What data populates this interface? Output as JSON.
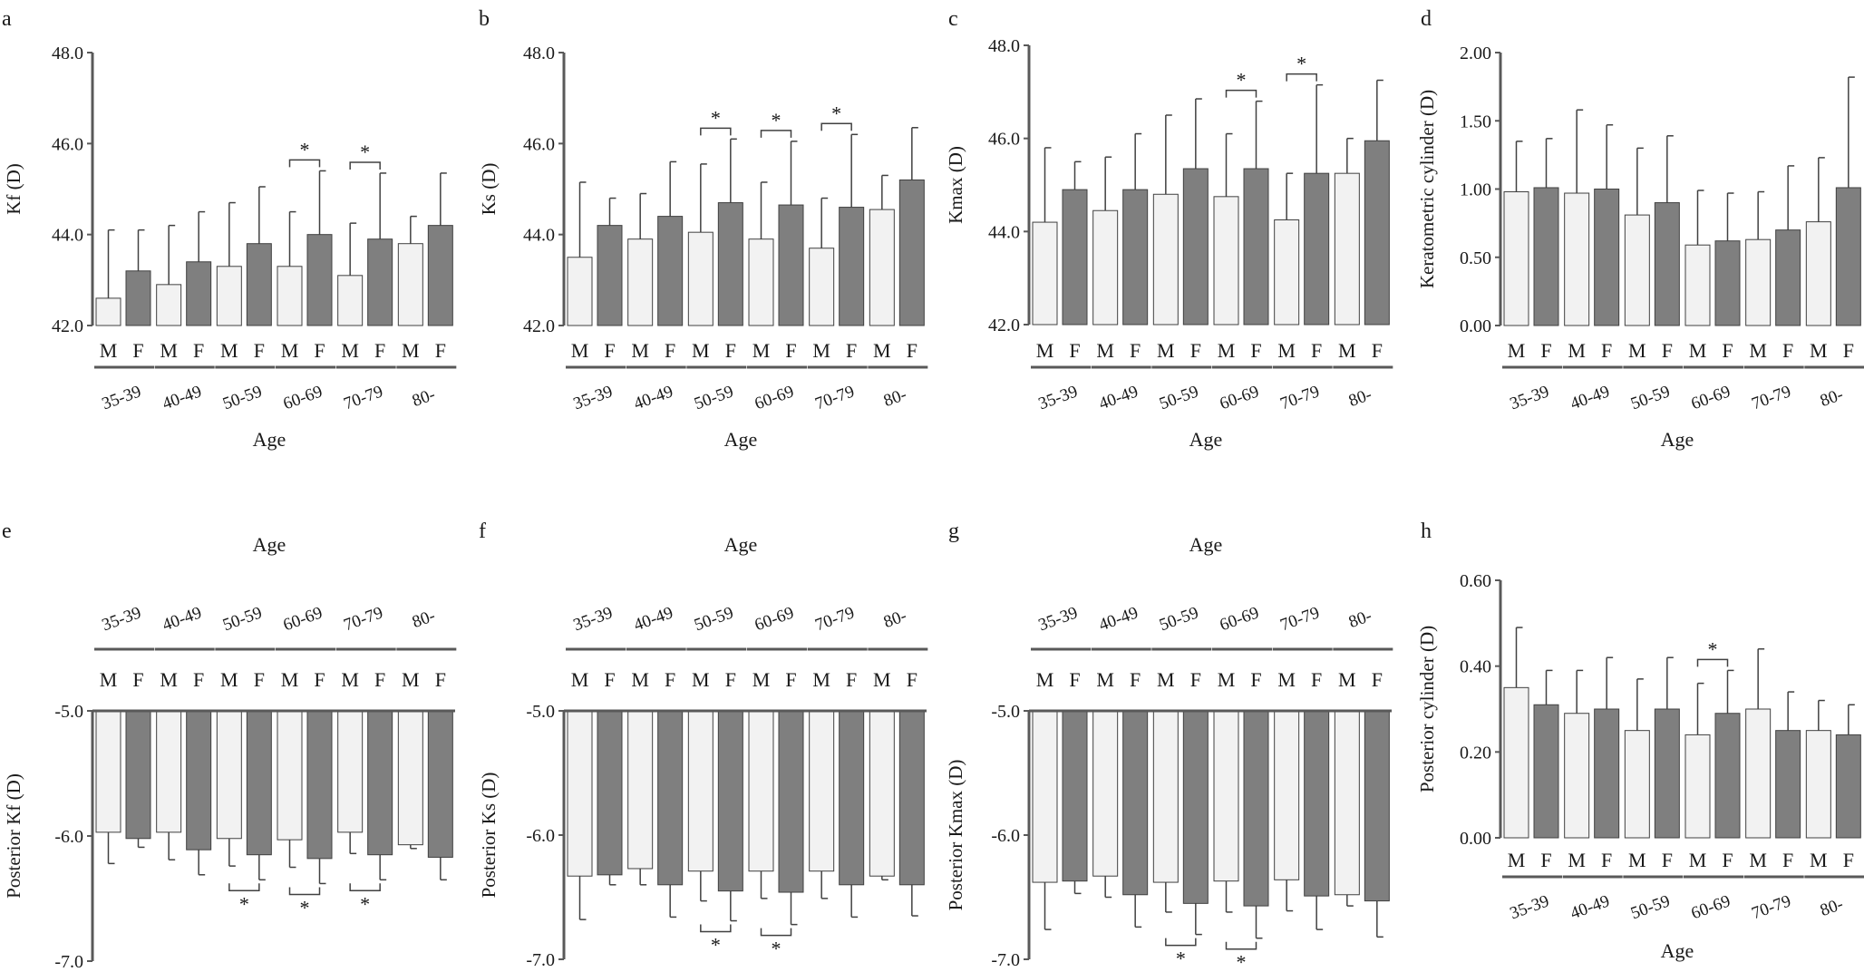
{
  "figure": {
    "colors": {
      "male": "#f2f2f2",
      "female": "#7f7f7f",
      "axis": "#595959",
      "edge": "#404040",
      "text": "#1a1a1a",
      "tick": "#666666"
    }
  },
  "chart_data": [
    {
      "panel": "a",
      "type": "bar",
      "orientation": "up",
      "ylabel": "Kf (D)",
      "xlabel": "Age",
      "ylim": [
        42.0,
        48.0
      ],
      "yticks": [
        "42.0",
        "44.0",
        "46.0",
        "48.0"
      ],
      "groups": [
        "35-39",
        "40-49",
        "50-59",
        "60-69",
        "70-79",
        "80-"
      ],
      "sex_labels": [
        "M",
        "F"
      ],
      "series": [
        {
          "name": "M",
          "values": [
            42.6,
            42.9,
            43.3,
            43.3,
            43.1,
            43.8
          ],
          "err": [
            1.5,
            1.3,
            1.4,
            1.2,
            1.15,
            0.6
          ]
        },
        {
          "name": "F",
          "values": [
            43.2,
            43.4,
            43.8,
            44.0,
            43.9,
            44.2
          ],
          "err": [
            0.9,
            1.1,
            1.25,
            1.4,
            1.45,
            1.15
          ]
        }
      ],
      "significant_groups": [
        3,
        4
      ],
      "sig_label": "*"
    },
    {
      "panel": "b",
      "type": "bar",
      "orientation": "up",
      "ylabel": "Ks (D)",
      "xlabel": "Age",
      "ylim": [
        42.0,
        48.0
      ],
      "yticks": [
        "42.0",
        "44.0",
        "46.0",
        "48.0"
      ],
      "groups": [
        "35-39",
        "40-49",
        "50-59",
        "60-69",
        "70-79",
        "80-"
      ],
      "sex_labels": [
        "M",
        "F"
      ],
      "series": [
        {
          "name": "M",
          "values": [
            43.5,
            43.9,
            44.05,
            43.9,
            43.7,
            44.55
          ],
          "err": [
            1.65,
            1.0,
            1.5,
            1.25,
            1.1,
            0.75
          ]
        },
        {
          "name": "F",
          "values": [
            44.2,
            44.4,
            44.7,
            44.65,
            44.6,
            45.2
          ],
          "err": [
            0.6,
            1.2,
            1.4,
            1.4,
            1.6,
            1.15
          ]
        }
      ],
      "significant_groups": [
        2,
        3,
        4
      ],
      "sig_label": "*"
    },
    {
      "panel": "c",
      "type": "bar",
      "orientation": "up",
      "ylabel": "Kmax (D)",
      "xlabel": "Age",
      "ylim": [
        42.0,
        48.0
      ],
      "yticks": [
        "42.0",
        "44.0",
        "46.0",
        "48.0"
      ],
      "groups": [
        "35-39",
        "40-49",
        "50-59",
        "60-69",
        "70-79",
        "80-"
      ],
      "sex_labels": [
        "M",
        "F"
      ],
      "series": [
        {
          "name": "M",
          "values": [
            44.2,
            44.45,
            44.8,
            44.75,
            44.25,
            45.25
          ],
          "err": [
            1.6,
            1.15,
            1.7,
            1.35,
            1.0,
            0.75
          ]
        },
        {
          "name": "F",
          "values": [
            44.9,
            44.9,
            45.35,
            45.35,
            45.25,
            45.95
          ],
          "err": [
            0.6,
            1.2,
            1.5,
            1.45,
            1.9,
            1.3
          ]
        }
      ],
      "significant_groups": [
        3,
        4
      ],
      "sig_label": "*"
    },
    {
      "panel": "d",
      "type": "bar",
      "orientation": "up",
      "ylabel": "Keratometric cylinder (D)",
      "xlabel": "Age",
      "ylim": [
        0.0,
        2.0
      ],
      "yticks": [
        "0.00",
        "0.50",
        "1.00",
        "1.50",
        "2.00"
      ],
      "groups": [
        "35-39",
        "40-49",
        "50-59",
        "60-69",
        "70-79",
        "80-"
      ],
      "sex_labels": [
        "M",
        "F"
      ],
      "series": [
        {
          "name": "M",
          "values": [
            0.98,
            0.97,
            0.81,
            0.59,
            0.63,
            0.76
          ],
          "err": [
            0.37,
            0.61,
            0.49,
            0.4,
            0.35,
            0.47
          ]
        },
        {
          "name": "F",
          "values": [
            1.01,
            1.0,
            0.9,
            0.62,
            0.7,
            1.01
          ],
          "err": [
            0.36,
            0.47,
            0.49,
            0.35,
            0.47,
            0.81
          ]
        }
      ],
      "significant_groups": [],
      "sig_label": "*"
    },
    {
      "panel": "e",
      "type": "bar",
      "orientation": "down",
      "ylabel": "Posterior Kf (D)",
      "xlabel": "Age",
      "ylim": [
        -7.0,
        -5.0
      ],
      "yticks": [
        "-5.0",
        "-6.0",
        "-7.0"
      ],
      "groups": [
        "35-39",
        "40-49",
        "50-59",
        "60-69",
        "70-79",
        "80-"
      ],
      "sex_labels": [
        "M",
        "F"
      ],
      "series": [
        {
          "name": "M",
          "values": [
            -5.97,
            -5.97,
            -6.02,
            -6.03,
            -5.97,
            -6.07
          ],
          "err": [
            0.25,
            0.22,
            0.22,
            0.22,
            0.17,
            0.03
          ]
        },
        {
          "name": "F",
          "values": [
            -6.02,
            -6.11,
            -6.15,
            -6.18,
            -6.15,
            -6.17
          ],
          "err": [
            0.07,
            0.2,
            0.2,
            0.2,
            0.2,
            0.18
          ]
        }
      ],
      "significant_groups": [
        2,
        3,
        4
      ],
      "sig_label": "*"
    },
    {
      "panel": "f",
      "type": "bar",
      "orientation": "down",
      "ylabel": "Posterior Ks (D)",
      "xlabel": "Age",
      "ylim": [
        -7.0,
        -5.0
      ],
      "yticks": [
        "-5.0",
        "-6.0",
        "-7.0"
      ],
      "groups": [
        "35-39",
        "40-49",
        "50-59",
        "60-69",
        "70-79",
        "80-"
      ],
      "sex_labels": [
        "M",
        "F"
      ],
      "series": [
        {
          "name": "M",
          "values": [
            -6.33,
            -6.27,
            -6.29,
            -6.29,
            -6.29,
            -6.33
          ],
          "err": [
            0.35,
            0.13,
            0.24,
            0.22,
            0.22,
            0.03
          ]
        },
        {
          "name": "F",
          "values": [
            -6.32,
            -6.4,
            -6.45,
            -6.46,
            -6.4,
            -6.4
          ],
          "err": [
            0.08,
            0.26,
            0.24,
            0.26,
            0.26,
            0.25
          ]
        }
      ],
      "significant_groups": [
        2,
        3
      ],
      "sig_label": "*"
    },
    {
      "panel": "g",
      "type": "bar",
      "orientation": "down",
      "ylabel": "Posterior Kmax (D)",
      "xlabel": "Age",
      "ylim": [
        -7.0,
        -5.0
      ],
      "yticks": [
        "-5.0",
        "-6.0",
        "-7.0"
      ],
      "groups": [
        "35-39",
        "40-49",
        "50-59",
        "60-69",
        "70-79",
        "80-"
      ],
      "sex_labels": [
        "M",
        "F"
      ],
      "series": [
        {
          "name": "M",
          "values": [
            -6.38,
            -6.33,
            -6.38,
            -6.37,
            -6.36,
            -6.48
          ],
          "err": [
            0.38,
            0.17,
            0.24,
            0.25,
            0.25,
            0.09
          ]
        },
        {
          "name": "F",
          "values": [
            -6.37,
            -6.48,
            -6.55,
            -6.57,
            -6.49,
            -6.53
          ],
          "err": [
            0.1,
            0.26,
            0.25,
            0.26,
            0.27,
            0.29
          ]
        }
      ],
      "significant_groups": [
        2,
        3
      ],
      "sig_label": "*"
    },
    {
      "panel": "h",
      "type": "bar",
      "orientation": "up",
      "ylabel": "Posterior cylinder (D)",
      "xlabel": "Age",
      "ylim": [
        0.0,
        0.6
      ],
      "yticks": [
        "0.00",
        "0.20",
        "0.40",
        "0.60"
      ],
      "groups": [
        "35-39",
        "40-49",
        "50-59",
        "60-69",
        "70-79",
        "80-"
      ],
      "sex_labels": [
        "M",
        "F"
      ],
      "series": [
        {
          "name": "M",
          "values": [
            0.35,
            0.29,
            0.25,
            0.24,
            0.3,
            0.25
          ],
          "err": [
            0.14,
            0.1,
            0.12,
            0.12,
            0.14,
            0.07
          ]
        },
        {
          "name": "F",
          "values": [
            0.31,
            0.3,
            0.3,
            0.29,
            0.25,
            0.24
          ],
          "err": [
            0.08,
            0.12,
            0.12,
            0.1,
            0.09,
            0.07
          ]
        }
      ],
      "significant_groups": [
        3
      ],
      "sig_label": "*"
    }
  ]
}
